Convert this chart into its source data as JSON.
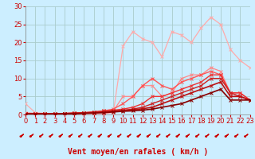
{
  "bg_color": "#cceeff",
  "grid_color": "#aacccc",
  "xlabel": "Vent moyen/en rafales ( km/h )",
  "xlim": [
    0,
    23
  ],
  "ylim": [
    0,
    30
  ],
  "xticks": [
    0,
    1,
    2,
    3,
    4,
    5,
    6,
    7,
    8,
    9,
    10,
    11,
    12,
    13,
    14,
    15,
    16,
    17,
    18,
    19,
    20,
    21,
    22,
    23
  ],
  "yticks": [
    0,
    5,
    10,
    15,
    20,
    25,
    30
  ],
  "series": [
    {
      "x": [
        0,
        1,
        2,
        3,
        4,
        5,
        6,
        7,
        8,
        9,
        10,
        11,
        12,
        13,
        14,
        15,
        16,
        17,
        18,
        19,
        20,
        21,
        22,
        23
      ],
      "y": [
        3,
        0.5,
        0.3,
        0.2,
        0.2,
        0.2,
        0.2,
        0.2,
        0.2,
        0.5,
        19,
        23,
        21,
        20,
        16,
        23,
        22,
        20,
        24,
        27,
        25,
        18,
        15,
        13
      ],
      "color": "#ffaaaa",
      "lw": 0.9,
      "marker": "x",
      "ms": 2.5
    },
    {
      "x": [
        0,
        1,
        2,
        3,
        4,
        5,
        6,
        7,
        8,
        9,
        10,
        11,
        12,
        13,
        14,
        15,
        16,
        17,
        18,
        19,
        20,
        21,
        22,
        23
      ],
      "y": [
        0.5,
        0.3,
        0.2,
        0.2,
        0.2,
        0.3,
        0.4,
        0.5,
        0.7,
        1.0,
        5,
        5,
        8,
        8,
        5,
        6,
        10,
        11,
        11,
        13,
        12,
        6,
        5,
        4
      ],
      "color": "#ff8888",
      "lw": 0.9,
      "marker": "x",
      "ms": 2.5
    },
    {
      "x": [
        0,
        1,
        2,
        3,
        4,
        5,
        6,
        7,
        8,
        9,
        10,
        11,
        12,
        13,
        14,
        15,
        16,
        17,
        18,
        19,
        20,
        21,
        22,
        23
      ],
      "y": [
        0.3,
        0.2,
        0.2,
        0.2,
        0.3,
        0.4,
        0.5,
        0.7,
        1.0,
        1.5,
        3,
        5,
        8,
        10,
        8,
        7,
        9,
        10,
        11,
        12,
        11,
        6,
        6,
        4
      ],
      "color": "#ff5555",
      "lw": 1.0,
      "marker": "x",
      "ms": 2.5
    },
    {
      "x": [
        0,
        1,
        2,
        3,
        4,
        5,
        6,
        7,
        8,
        9,
        10,
        11,
        12,
        13,
        14,
        15,
        16,
        17,
        18,
        19,
        20,
        21,
        22,
        23
      ],
      "y": [
        0.2,
        0.2,
        0.2,
        0.2,
        0.3,
        0.4,
        0.5,
        0.7,
        1.0,
        1.2,
        1.5,
        2,
        3,
        5,
        5,
        6,
        7,
        8,
        9,
        11,
        11,
        6,
        6,
        4
      ],
      "color": "#ee3333",
      "lw": 1.0,
      "marker": "x",
      "ms": 2.5
    },
    {
      "x": [
        0,
        1,
        2,
        3,
        4,
        5,
        6,
        7,
        8,
        9,
        10,
        11,
        12,
        13,
        14,
        15,
        16,
        17,
        18,
        19,
        20,
        21,
        22,
        23
      ],
      "y": [
        0.2,
        0.2,
        0.2,
        0.2,
        0.3,
        0.4,
        0.5,
        0.6,
        0.8,
        1.0,
        1.2,
        1.5,
        2,
        3,
        4,
        5,
        6,
        7,
        8,
        10,
        10,
        6,
        5,
        4
      ],
      "color": "#cc2222",
      "lw": 1.0,
      "marker": "x",
      "ms": 2.5
    },
    {
      "x": [
        0,
        1,
        2,
        3,
        4,
        5,
        6,
        7,
        8,
        9,
        10,
        11,
        12,
        13,
        14,
        15,
        16,
        17,
        18,
        19,
        20,
        21,
        22,
        23
      ],
      "y": [
        0.2,
        0.2,
        0.2,
        0.2,
        0.2,
        0.3,
        0.4,
        0.5,
        0.7,
        0.9,
        1.1,
        1.3,
        1.6,
        2,
        3,
        4,
        5,
        6,
        7,
        8,
        9,
        5,
        5,
        4
      ],
      "color": "#bb1111",
      "lw": 1.2,
      "marker": "x",
      "ms": 2.5
    },
    {
      "x": [
        0,
        1,
        2,
        3,
        4,
        5,
        6,
        7,
        8,
        9,
        10,
        11,
        12,
        13,
        14,
        15,
        16,
        17,
        18,
        19,
        20,
        21,
        22,
        23
      ],
      "y": [
        0.1,
        0.1,
        0.1,
        0.1,
        0.2,
        0.2,
        0.3,
        0.4,
        0.5,
        0.7,
        0.9,
        1.0,
        1.2,
        1.5,
        2,
        2.5,
        3,
        4,
        5,
        6,
        7,
        4,
        4,
        4
      ],
      "color": "#880000",
      "lw": 1.2,
      "marker": "x",
      "ms": 2.5
    }
  ],
  "xlabel_color": "#cc0000",
  "xlabel_fontsize": 7,
  "tick_fontsize": 6,
  "tick_color": "#cc0000",
  "arrow_color": "#cc0000"
}
